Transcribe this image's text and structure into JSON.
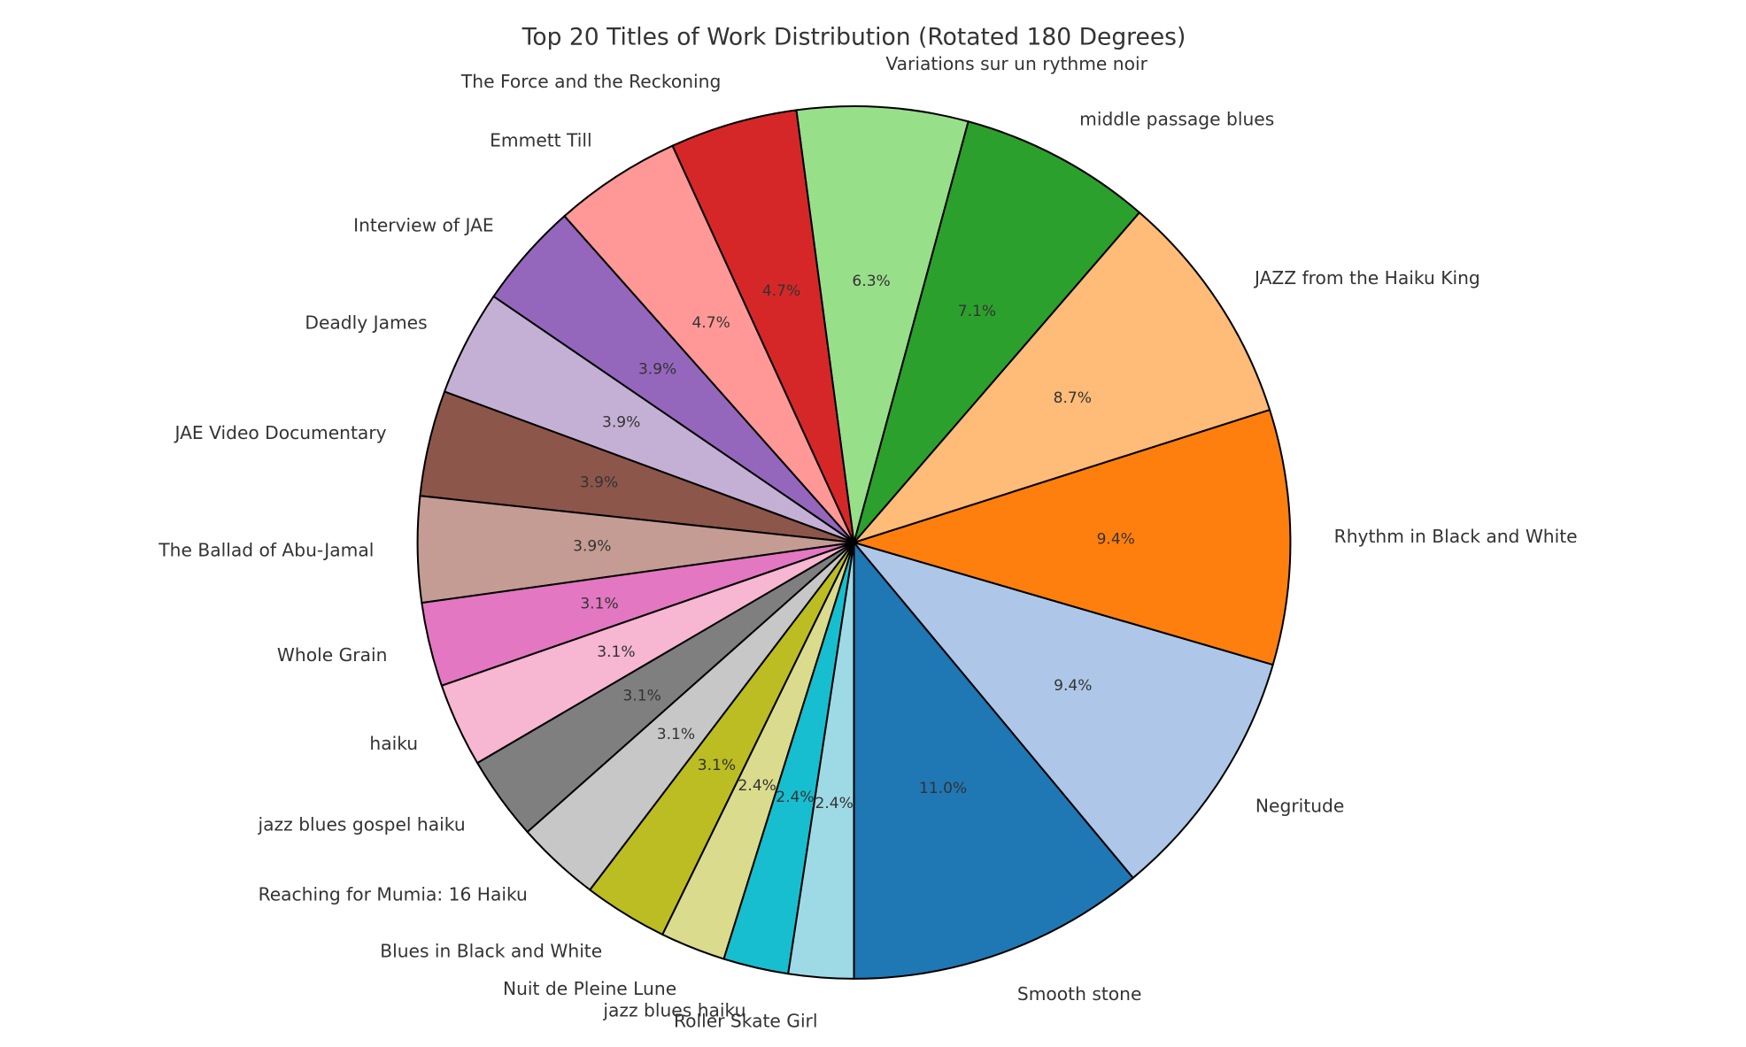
{
  "chart_data": {
    "type": "pie",
    "title": "Top 20 Titles of Work Distribution (Rotated 180 Degrees)",
    "start_angle_deg": 270,
    "direction": "counterclockwise",
    "edge_color": "#000000",
    "slices": [
      {
        "label": "Smooth stone",
        "pct": 11.0,
        "pct_label": "11.0%",
        "color": "#1f77b4"
      },
      {
        "label": "Negritude",
        "pct": 9.4,
        "pct_label": "9.4%",
        "color": "#aec7e8"
      },
      {
        "label": "Rhythm in Black and White",
        "pct": 9.4,
        "pct_label": "9.4%",
        "color": "#ff7f0e"
      },
      {
        "label": "JAZZ from the Haiku King",
        "pct": 8.7,
        "pct_label": "8.7%",
        "color": "#ffbb78"
      },
      {
        "label": "middle passage blues",
        "pct": 7.1,
        "pct_label": "7.1%",
        "color": "#2ca02c"
      },
      {
        "label": "Variations sur un rythme noir",
        "pct": 6.3,
        "pct_label": "6.3%",
        "color": "#98df8a"
      },
      {
        "label": "The Force and the Reckoning",
        "pct": 4.7,
        "pct_label": "4.7%",
        "color": "#d62728"
      },
      {
        "label": "Emmett Till",
        "pct": 4.7,
        "pct_label": "4.7%",
        "color": "#ff9896"
      },
      {
        "label": "Interview of JAE",
        "pct": 3.9,
        "pct_label": "3.9%",
        "color": "#9467bd"
      },
      {
        "label": "Deadly James",
        "pct": 3.9,
        "pct_label": "3.9%",
        "color": "#c5b0d5"
      },
      {
        "label": "JAE Video Documentary",
        "pct": 3.9,
        "pct_label": "3.9%",
        "color": "#8c564b"
      },
      {
        "label": "The Ballad of Abu-Jamal",
        "pct": 3.9,
        "pct_label": "3.9%",
        "color": "#c49c94"
      },
      {
        "label": "Whole Grain",
        "pct": 3.1,
        "pct_label": "3.1%",
        "color": "#e377c2"
      },
      {
        "label": "haiku",
        "pct": 3.1,
        "pct_label": "3.1%",
        "color": "#f7b6d2"
      },
      {
        "label": "jazz blues gospel haiku",
        "pct": 3.1,
        "pct_label": "3.1%",
        "color": "#7f7f7f"
      },
      {
        "label": "Reaching for Mumia: 16 Haiku",
        "pct": 3.1,
        "pct_label": "3.1%",
        "color": "#c7c7c7"
      },
      {
        "label": "Blues in Black and White",
        "pct": 3.1,
        "pct_label": "3.1%",
        "color": "#bcbd22"
      },
      {
        "label": "Nuit de Pleine Lune",
        "pct": 2.4,
        "pct_label": "2.4%",
        "color": "#dbdb8d"
      },
      {
        "label": "jazz blues haiku",
        "pct": 2.4,
        "pct_label": "2.4%",
        "color": "#17becf"
      },
      {
        "label": "Roller Skate Girl",
        "pct": 2.4,
        "pct_label": "2.4%",
        "color": "#9edae5"
      }
    ]
  }
}
